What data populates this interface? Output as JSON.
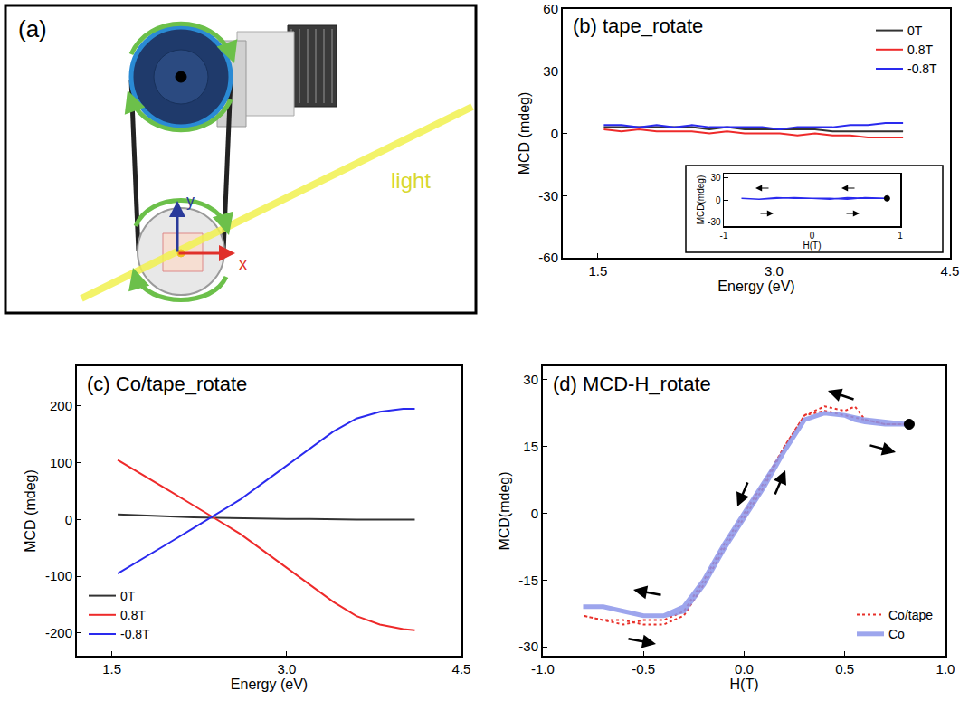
{
  "diagram": {
    "label": "(a)",
    "light": "light",
    "axes": {
      "x": "x",
      "y": "y"
    }
  },
  "chart_data": [
    {
      "type": "line",
      "title": "(b) tape_rotate",
      "x_label": "Energy (eV)",
      "y_label": "MCD (mdeg)",
      "xlim": [
        1.2,
        4.5
      ],
      "xticks": [
        1.5,
        {
          "value": 3.0,
          "label": "3.0"
        },
        4.5
      ],
      "ylim": [
        -60,
        60
      ],
      "yticks": [
        -60,
        -30,
        0,
        30,
        60
      ],
      "legend": "upper right",
      "x": [
        1.55,
        1.7,
        1.85,
        2.0,
        2.15,
        2.3,
        2.45,
        2.6,
        2.75,
        2.9,
        3.05,
        3.2,
        3.35,
        3.5,
        3.65,
        3.8,
        3.95,
        4.1
      ],
      "series": [
        {
          "name": "0T",
          "color": "#333333",
          "values": [
            3,
            3,
            3,
            3,
            3,
            3,
            2,
            3,
            2,
            2,
            2,
            2,
            2,
            1,
            1,
            1,
            1,
            1
          ]
        },
        {
          "name": "0.8T",
          "color": "#ee2a2a",
          "values": [
            2,
            1,
            2,
            1,
            1,
            1,
            0,
            1,
            0,
            0,
            0,
            -1,
            0,
            -1,
            -1,
            -2,
            -2,
            -2
          ]
        },
        {
          "name": "-0.8T",
          "color": "#2a2aee",
          "values": [
            4,
            4,
            3,
            4,
            3,
            4,
            3,
            3,
            3,
            3,
            2,
            3,
            3,
            3,
            4,
            4,
            5,
            5
          ]
        }
      ]
    },
    {
      "type": "line",
      "x_label": "H(T)",
      "y_label": "MCD(mdeg)",
      "xlim": [
        -1,
        1
      ],
      "xticks": [
        -1,
        0,
        1
      ],
      "ylim": [
        -35,
        35
      ],
      "yticks": [
        -30,
        0,
        30
      ],
      "x": [
        0.85,
        0.6,
        0.4,
        0.2,
        0,
        -0.2,
        -0.4,
        -0.6,
        -0.8,
        -0.6,
        -0.4,
        -0.2,
        0,
        0.2,
        0.4,
        0.6,
        0.85
      ],
      "series": [
        {
          "color": "#2a2aee",
          "values": [
            2,
            3,
            1,
            2,
            2,
            3,
            2,
            1,
            2,
            1,
            3,
            2,
            2,
            1,
            3,
            2,
            2
          ]
        }
      ],
      "start": {
        "x": 0.85,
        "y": 2
      }
    },
    {
      "type": "line",
      "title": "(c) Co/tape_rotate",
      "x_label": "Energy (eV)",
      "y_label": "MCD (mdeg)",
      "xlim": [
        1.2,
        4.5
      ],
      "xticks": [
        1.5,
        {
          "value": 3.0,
          "label": "3.0"
        },
        4.5
      ],
      "ylim": [
        -240,
        270
      ],
      "yticks": [
        -200,
        -100,
        0,
        100,
        200
      ],
      "legend": "lower left",
      "x": [
        1.55,
        1.8,
        2.0,
        2.2,
        2.4,
        2.6,
        2.8,
        3.0,
        3.2,
        3.4,
        3.6,
        3.8,
        4.0,
        4.1
      ],
      "series": [
        {
          "name": "0T",
          "color": "#333333",
          "values": [
            9,
            7,
            5,
            4,
            3,
            2,
            2,
            1,
            1,
            0,
            0,
            0,
            0,
            0
          ]
        },
        {
          "name": "0.8T",
          "color": "#ee2a2a",
          "values": [
            105,
            75,
            50,
            25,
            0,
            -25,
            -55,
            -85,
            -115,
            -145,
            -170,
            -185,
            -193,
            -195
          ]
        },
        {
          "name": "-0.8T",
          "color": "#2a2aee",
          "values": [
            -95,
            -65,
            -40,
            -15,
            10,
            35,
            65,
            95,
            125,
            155,
            178,
            190,
            195,
            195
          ]
        }
      ]
    },
    {
      "type": "line",
      "title": "(d) MCD-H_rotate",
      "x_label": "H(T)",
      "y_label": "MCD(mdeg)",
      "xlim": [
        -1,
        1
      ],
      "xticks": [
        {
          "value": -1.0,
          "label": "-1.0"
        },
        -0.5,
        {
          "value": 0.0,
          "label": "0.0"
        },
        0.5,
        {
          "value": 1.0,
          "label": "1.0"
        }
      ],
      "ylim": [
        -32,
        33
      ],
      "yticks": [
        -30,
        -15,
        0,
        15,
        30
      ],
      "legend": "lower right",
      "x": [
        0.8,
        0.7,
        0.6,
        0.55,
        0.5,
        0.4,
        0.3,
        0.2,
        0.1,
        0,
        -0.1,
        -0.2,
        -0.3,
        -0.4,
        -0.5,
        -0.6,
        -0.7,
        -0.8,
        -0.7,
        -0.6,
        -0.5,
        -0.4,
        -0.3,
        -0.2,
        -0.1,
        0,
        0.1,
        0.2,
        0.3,
        0.4,
        0.5,
        0.6,
        0.7,
        0.8
      ],
      "series": [
        {
          "name": "Co/tape",
          "color": "#e8302a",
          "line_style": "dotted",
          "values": [
            20,
            20,
            21,
            24,
            23,
            24,
            22,
            15,
            6,
            -1,
            -8,
            -16,
            -23,
            -25,
            -25,
            -24,
            -24,
            -23,
            -24,
            -25,
            -24,
            -24,
            -22,
            -15,
            -7,
            0,
            7,
            15,
            22,
            23,
            22,
            21,
            20,
            20
          ]
        },
        {
          "name": "Co",
          "color": "#8c96ea",
          "line_style": "solid",
          "values": [
            20,
            20,
            20.5,
            21,
            22,
            22.5,
            21,
            14,
            6,
            -1,
            -8,
            -16,
            -22,
            -23,
            -23,
            -22,
            -21,
            -21,
            -21,
            -22,
            -23,
            -23,
            -21,
            -15,
            -7,
            0,
            7,
            14,
            21,
            22.5,
            22,
            21,
            20.5,
            20
          ]
        }
      ],
      "start": {
        "x": 0.82,
        "y": 20
      }
    }
  ]
}
